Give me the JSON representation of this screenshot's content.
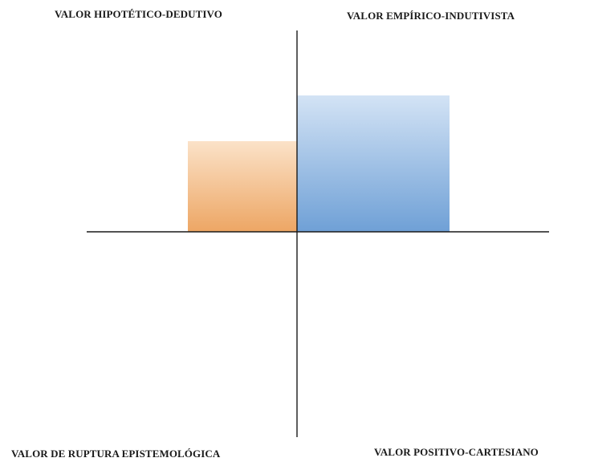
{
  "quadrant_labels": {
    "top_left": "VALOR HIPOTÉTICO-DEDUTIVO",
    "top_right": "VALOR EMPÍRICO-INDUTIVISTA",
    "bottom_left": "VALOR DE RUPTURA EPISTEMOLÓGICA",
    "bottom_right": "VALOR POSITIVO-CARTESIANO"
  },
  "chart_data": {
    "type": "bar",
    "categories": [
      "VALOR HIPOTÉTICO-DEDUTIVO",
      "VALOR EMPÍRICO-INDUTIVISTA"
    ],
    "series": [
      {
        "category": "VALOR HIPOTÉTICO-DEDUTIVO",
        "value": 0.45,
        "quadrant": "top_left",
        "color_light": "#fbe2c8",
        "color_dark": "#eda664"
      },
      {
        "category": "VALOR EMPÍRICO-INDUTIVISTA",
        "value": 0.68,
        "quadrant": "top_right",
        "color_light": "#d3e3f5",
        "color_dark": "#6fa0d6"
      }
    ],
    "ylim": [
      -1,
      1
    ],
    "axes": {
      "horizontal_axis": true,
      "vertical_axis": true,
      "axis_color": "#1a1a1a"
    },
    "grid": false,
    "legend": "none"
  }
}
